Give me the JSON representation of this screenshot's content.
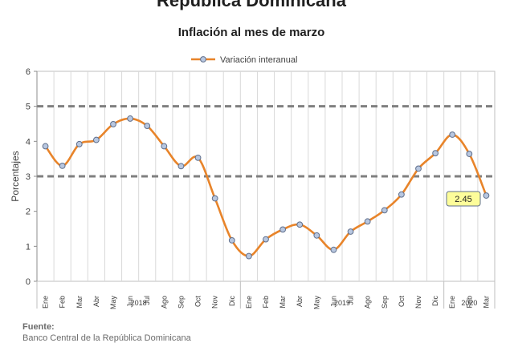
{
  "chart_data": {
    "type": "line",
    "title": "República Dominicana",
    "subtitle": "Inflación al mes de marzo",
    "ylabel": "Porcentajes",
    "ylim": [
      0,
      6
    ],
    "yticks": [
      "0",
      "1",
      "2",
      "3",
      "4",
      "5",
      "6"
    ],
    "grid": true,
    "legend_position": "top-center",
    "categories": [
      "Ene",
      "Feb",
      "Mar",
      "Abr",
      "May",
      "Jun",
      "Jul",
      "Ago",
      "Sep",
      "Oct",
      "Nov",
      "Dic",
      "Ene",
      "Feb",
      "Mar",
      "Abr",
      "May",
      "Jun",
      "Jul",
      "Ago",
      "Sep",
      "Oct",
      "Nov",
      "Dic",
      "Ene",
      "Feb",
      "Mar"
    ],
    "year_groups": [
      {
        "label": "2018",
        "count": 12
      },
      {
        "label": "2019",
        "count": 12
      },
      {
        "label": "2020",
        "count": 3
      }
    ],
    "series": [
      {
        "name": "Variación interanual",
        "color": "#e8842a",
        "marker_fill": "#b8c7e0",
        "values": [
          3.86,
          3.3,
          3.92,
          4.04,
          4.49,
          4.65,
          4.44,
          3.86,
          3.29,
          3.53,
          2.37,
          1.17,
          0.72,
          1.2,
          1.48,
          1.62,
          1.31,
          0.9,
          1.42,
          1.71,
          2.03,
          2.48,
          3.22,
          3.66,
          4.19,
          3.64,
          2.45
        ]
      }
    ],
    "reference_lines": [
      3,
      5
    ],
    "annotation": {
      "text": "2.45",
      "index": 26
    }
  },
  "footer": {
    "label": "Fuente:",
    "source": "Banco Central de la República Dominicana"
  }
}
